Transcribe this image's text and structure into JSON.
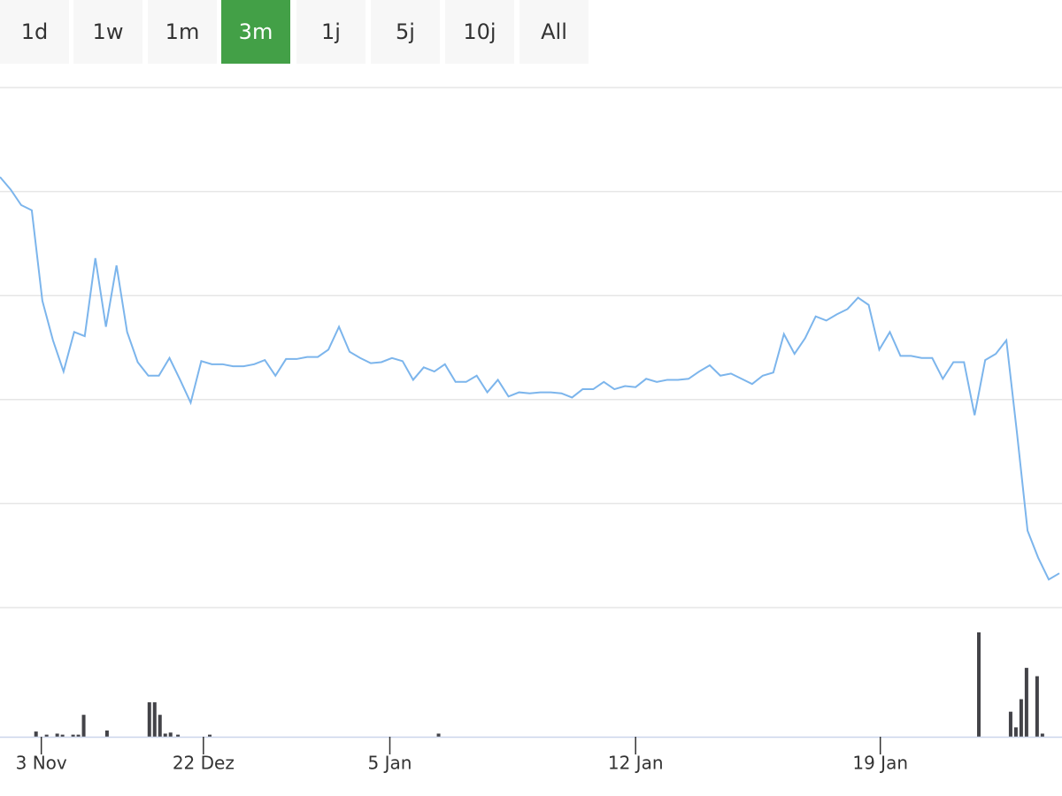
{
  "range_buttons": [
    "1d",
    "1w",
    "1m",
    "3m",
    "1j",
    "5j",
    "10j",
    "All"
  ],
  "selected_button": 3,
  "chart_data": [
    {
      "type": "line",
      "xlim": [
        0,
        100
      ],
      "ylim": [
        0,
        50
      ],
      "yticks": [
        0,
        10,
        20,
        30,
        40,
        50
      ],
      "grid": true,
      "color": "#7cb5ec",
      "values": [
        41.4,
        40.2,
        38.7,
        38.2,
        29.5,
        25.7,
        22.7,
        26.5,
        26.1,
        33.6,
        27.0,
        32.9,
        26.5,
        23.6,
        22.3,
        22.3,
        24.0,
        21.9,
        19.7,
        23.7,
        23.4,
        23.4,
        23.2,
        23.2,
        23.4,
        23.8,
        22.3,
        23.9,
        23.9,
        24.1,
        24.1,
        24.8,
        27.0,
        24.6,
        24.0,
        23.5,
        23.6,
        24.0,
        23.7,
        21.9,
        23.1,
        22.7,
        23.4,
        21.7,
        21.7,
        22.3,
        20.7,
        21.9,
        20.3,
        20.7,
        20.6,
        20.7,
        20.7,
        20.6,
        20.2,
        21.0,
        21.0,
        21.7,
        21.0,
        21.3,
        21.2,
        22.0,
        21.7,
        21.9,
        21.9,
        22.0,
        22.7,
        23.3,
        22.3,
        22.5,
        22.0,
        21.5,
        22.3,
        22.6,
        26.3,
        24.4,
        25.9,
        28.0,
        27.6,
        28.2,
        28.7,
        29.8,
        29.1,
        24.8,
        26.5,
        24.2,
        24.2,
        24.0,
        24.0,
        22.0,
        23.6,
        23.6,
        18.5,
        23.8,
        24.4,
        25.7,
        16.8,
        7.4,
        4.8,
        2.7,
        3.3
      ]
    },
    {
      "type": "bar",
      "xlim": [
        0,
        100
      ],
      "ylim": [
        0,
        100
      ],
      "color": "#434348",
      "x": [
        3.4,
        4.4,
        5.4,
        5.9,
        6.9,
        7.4,
        7.9,
        10.1,
        14.1,
        14.6,
        15.1,
        15.6,
        16.1,
        16.8,
        19.8,
        41.4,
        92.4,
        95.4,
        95.9,
        96.4,
        96.9,
        97.9,
        98.4
      ],
      "values": [
        5,
        2,
        3,
        2,
        2,
        2,
        21,
        6,
        33,
        33,
        21,
        3,
        4,
        2,
        2,
        3,
        100,
        24,
        9,
        36,
        66,
        58,
        3
      ],
      "xticks": [
        {
          "value": 3.9,
          "label": "3 Nov"
        },
        {
          "value": 19.2,
          "label": "22 Dez"
        },
        {
          "value": 36.8,
          "label": "5 Jan"
        },
        {
          "value": 60.0,
          "label": "12 Jan"
        },
        {
          "value": 83.1,
          "label": "19 Jan"
        }
      ]
    }
  ]
}
